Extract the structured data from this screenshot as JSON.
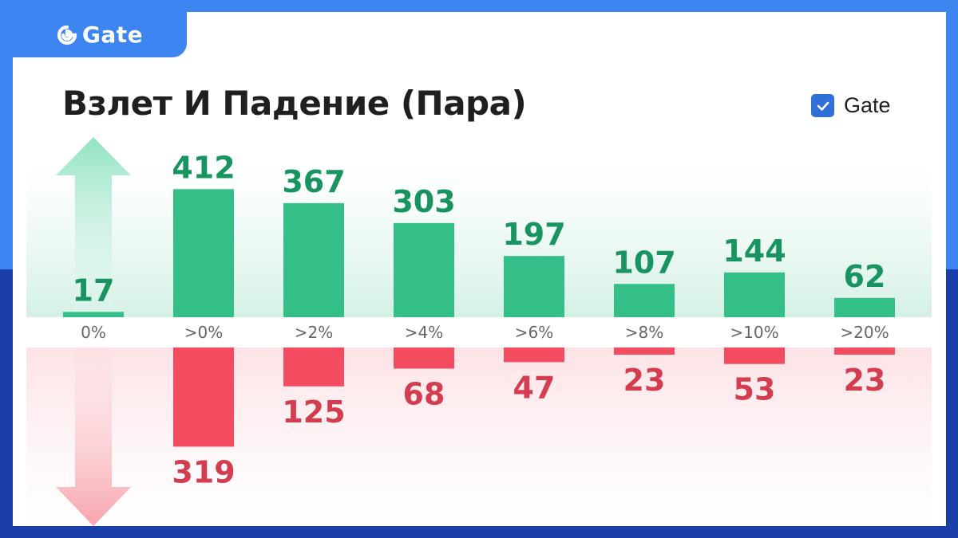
{
  "brand": {
    "name": "Gate",
    "colors": {
      "primary_blue": "#3d86f2",
      "deep_blue": "#1a3fa8"
    }
  },
  "header": {
    "title": "Взлет И Падение (Пара)",
    "legend_label": "Gate",
    "legend_checked": true
  },
  "chart_data": {
    "type": "bar",
    "categories": [
      "0%",
      ">0%",
      ">2%",
      ">4%",
      ">6%",
      ">8%",
      ">10%",
      ">20%"
    ],
    "series": [
      {
        "values": [
          17,
          412,
          367,
          303,
          197,
          107,
          144,
          62
        ],
        "color": "#34be88",
        "label_color": "#179460"
      },
      {
        "values": [
          0,
          319,
          125,
          68,
          47,
          23,
          53,
          23
        ],
        "color": "#f34b5f",
        "label_color": "#d43c50"
      }
    ],
    "direction_arrows": [
      "up-arrow-icon",
      "down-arrow-icon"
    ],
    "legend": "top-right",
    "grid": false
  }
}
